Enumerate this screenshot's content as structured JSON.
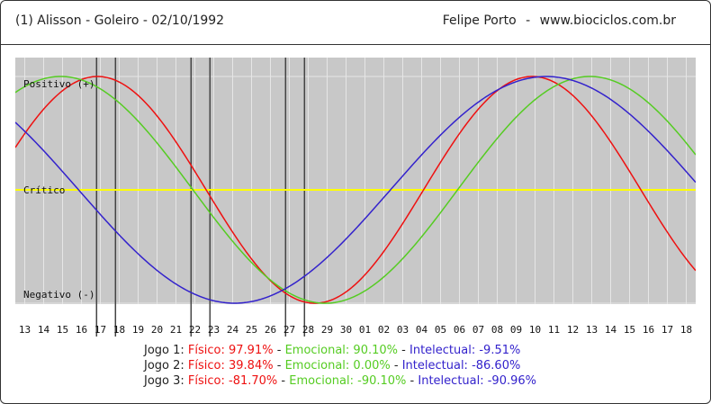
{
  "header": {
    "subject": "(1)  Alisson - Goleiro -  02/10/1992",
    "author": "Felipe Porto",
    "separator": "-",
    "site": "www.biociclos.com.br"
  },
  "colors": {
    "fisico": "#ee1111",
    "emocional": "#55cc22",
    "intelectual": "#3322cc",
    "critico": "#ffff00",
    "plot_bg": "#c8c8c8",
    "grid": "#e6e6e6"
  },
  "chart_data": {
    "type": "line",
    "x": [
      "13",
      "14",
      "15",
      "16",
      "17",
      "18",
      "19",
      "20",
      "21",
      "22",
      "23",
      "24",
      "25",
      "26",
      "27",
      "28",
      "29",
      "30",
      "01",
      "02",
      "03",
      "04",
      "05",
      "06",
      "07",
      "08",
      "09",
      "10",
      "11",
      "12",
      "13",
      "14",
      "15",
      "16",
      "17",
      "18"
    ],
    "levels": {
      "positivo": "Positivo (+)",
      "critico": "Crítico",
      "negativo": "Negativo (-)"
    },
    "ylim": [
      -100,
      100
    ],
    "series": [
      {
        "key": "fisico",
        "period": 23,
        "peak_x": 3.85
      },
      {
        "key": "emocional",
        "period": 28,
        "peak_x": 1.9
      },
      {
        "key": "intelectual",
        "period": 33,
        "peak_x": 27.6
      }
    ],
    "game_markers": [
      {
        "name": "Jogo 1",
        "x": [
          3.8,
          4.8
        ]
      },
      {
        "name": "Jogo 2",
        "x": [
          8.8,
          9.8
        ]
      },
      {
        "name": "Jogo 3",
        "x": [
          13.8,
          14.8
        ]
      }
    ]
  },
  "summary": [
    {
      "label": "Jogo 1:",
      "fisico": "Físico: 97.91%",
      "emocional": "Emocional: 90.10%",
      "intelectual": "Intelectual: -9.51%"
    },
    {
      "label": "Jogo 2:",
      "fisico": "Físico: 39.84%",
      "emocional": "Emocional: 0.00%",
      "intelectual": "Intelectual: -86.60%"
    },
    {
      "label": "Jogo 3:",
      "fisico": "Físico: -81.70%",
      "emocional": "Emocional: -90.10%",
      "intelectual": "Intelectual: -90.96%"
    }
  ]
}
